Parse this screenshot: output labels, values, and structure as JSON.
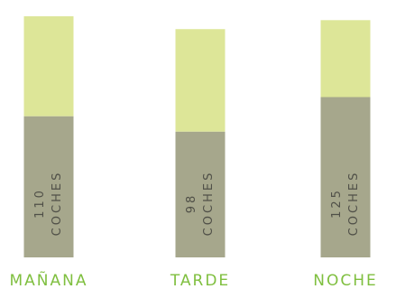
{
  "chart_data": {
    "type": "bar",
    "stacked": true,
    "categories": [
      "MAÑANA",
      "TARDE",
      "NOCHE"
    ],
    "series": [
      {
        "values": [
          110,
          98,
          125
        ]
      },
      {
        "values": [
          78,
          80,
          60
        ]
      }
    ],
    "bar_labels": [
      {
        "value": "110",
        "unit": "COCHES"
      },
      {
        "value": "98",
        "unit": "COCHES"
      },
      {
        "value": "125",
        "unit": "COCHES"
      }
    ],
    "colors": {
      "bottom": "#a6a78c",
      "top": "#dde698",
      "category_text": "#7fbf3f",
      "bar_text": "#505048"
    },
    "grid": false,
    "legend": "none"
  }
}
